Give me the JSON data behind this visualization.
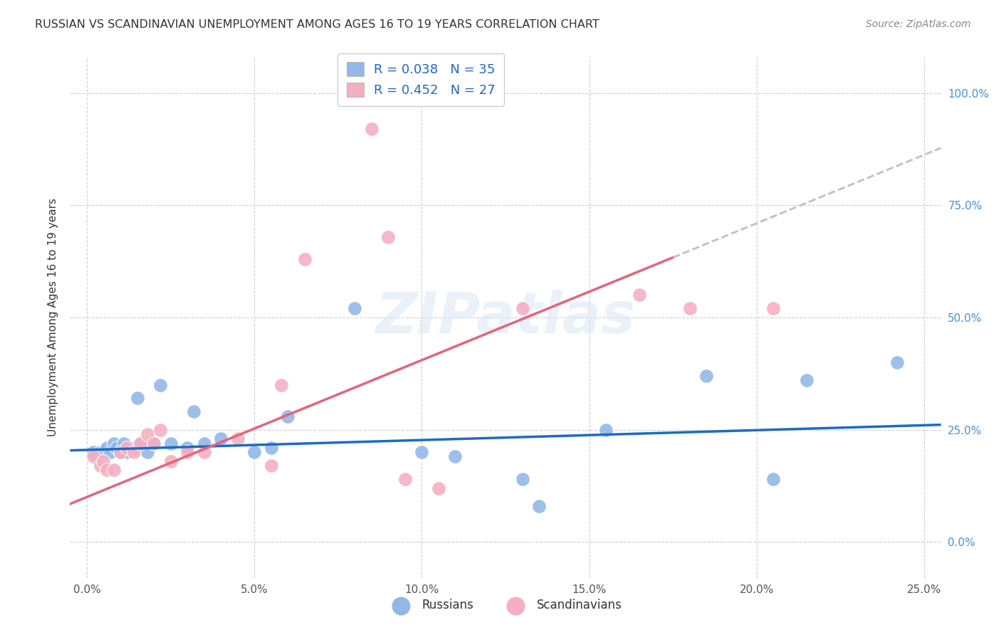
{
  "title": "RUSSIAN VS SCANDINAVIAN UNEMPLOYMENT AMONG AGES 16 TO 19 YEARS CORRELATION CHART",
  "source": "Source: ZipAtlas.com",
  "ylabel": "Unemployment Among Ages 16 to 19 years",
  "x_tick_labels": [
    "0.0%",
    "5.0%",
    "10.0%",
    "15.0%",
    "20.0%",
    "25.0%"
  ],
  "x_tick_values": [
    0,
    5,
    10,
    15,
    20,
    25
  ],
  "y_tick_labels": [
    "0.0%",
    "25.0%",
    "50.0%",
    "75.0%",
    "100.0%"
  ],
  "y_tick_values": [
    0,
    25,
    50,
    75,
    100
  ],
  "xlim": [
    -0.5,
    25.5
  ],
  "ylim": [
    -8,
    108
  ],
  "legend_labels": [
    "Russians",
    "Scandinavians"
  ],
  "legend_R_russian": "R = 0.038",
  "legend_N_russian": "N = 35",
  "legend_R_scand": "R = 0.452",
  "legend_N_scand": "N = 27",
  "russian_color": "#93b8e8",
  "scandinavian_color": "#f5afc0",
  "russian_line_color": "#1a6cc4",
  "scandinavian_line_color": "#e8637a",
  "dashed_line_color": "#c0c0c0",
  "watermark": "ZIPatlas",
  "background_color": "#ffffff",
  "grid_color": "#d0d0d0",
  "russians_x": [
    0.2,
    0.3,
    0.4,
    0.5,
    0.6,
    0.7,
    0.8,
    0.9,
    1.0,
    1.1,
    1.2,
    1.4,
    1.5,
    1.6,
    1.8,
    2.0,
    2.2,
    2.5,
    3.0,
    3.2,
    3.5,
    4.0,
    5.0,
    5.5,
    6.0,
    8.0,
    10.0,
    11.0,
    13.0,
    13.5,
    15.5,
    18.5,
    20.5,
    21.5,
    24.2
  ],
  "russians_y": [
    20,
    19,
    20,
    20,
    21,
    20,
    22,
    21,
    20,
    22,
    20,
    21,
    32,
    22,
    20,
    22,
    35,
    22,
    21,
    29,
    22,
    23,
    20,
    21,
    28,
    52,
    20,
    19,
    14,
    8,
    25,
    37,
    14,
    36,
    40
  ],
  "scandinavians_x": [
    0.2,
    0.4,
    0.5,
    0.6,
    0.8,
    1.0,
    1.2,
    1.4,
    1.6,
    1.8,
    2.0,
    2.2,
    2.5,
    3.0,
    3.5,
    4.5,
    5.5,
    6.5,
    8.5,
    9.5,
    10.5,
    13.0,
    16.5,
    18.0,
    20.5,
    9.0,
    5.8
  ],
  "scandinavians_y": [
    19,
    17,
    18,
    16,
    16,
    20,
    21,
    20,
    22,
    24,
    22,
    25,
    18,
    20,
    20,
    23,
    17,
    63,
    92,
    14,
    12,
    52,
    55,
    52,
    52,
    68,
    35
  ],
  "russian_slope": 0.22,
  "russian_intercept": 20.5,
  "scandinavian_slope": 3.05,
  "scandinavian_intercept": 10.0,
  "scand_solid_end_x": 17.5,
  "scand_dashed_end_x": 25.5,
  "russian_dashed_start_x": 17.0,
  "russian_solid_end_x": 25.5
}
